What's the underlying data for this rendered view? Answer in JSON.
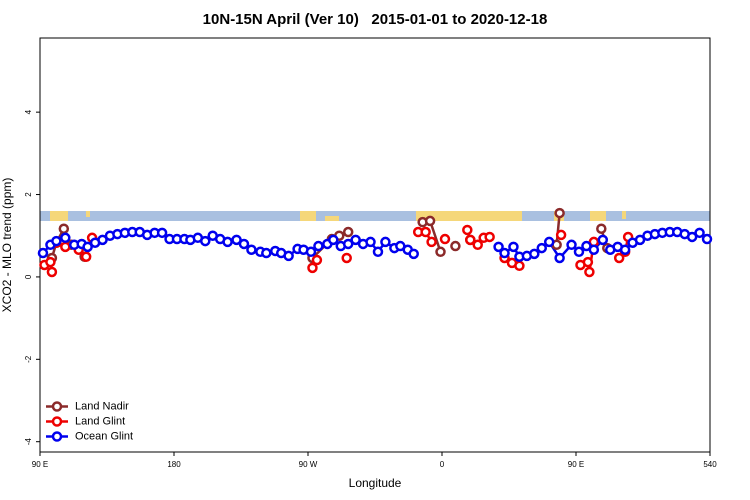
{
  "chart_data": {
    "type": "line",
    "title": "10N-15N April (Ver 10)   2015-01-01 to 2020-12-18",
    "x_label": "Longitude",
    "y_label": "XCO2 - MLO trend (ppm)",
    "xlim": [
      90,
      540
    ],
    "ylim": [
      -4.25,
      5.8
    ],
    "xticks": [
      {
        "value": 90,
        "label": "90 E"
      },
      180,
      {
        "value": 270,
        "label": "90 W"
      },
      {
        "value": 360,
        "label": "0"
      },
      {
        "value": 450,
        "label": "90 E"
      },
      540
    ],
    "yticks": [
      -4,
      -2,
      0,
      2,
      4
    ],
    "legend": "bottomleft",
    "series": [
      {
        "name": "Land Nadir",
        "color": "#8b2a2a",
        "x": [
          98,
          101,
          106,
          111,
          120,
          null,
          273,
          286,
          291,
          297,
          null,
          347,
          352,
          359,
          null,
          369,
          null,
          379,
          null,
          437,
          439,
          null,
          467,
          471
        ],
        "values": [
          0.46,
          0.83,
          1.17,
          0.78,
          0.49,
          null,
          0.46,
          0.92,
          1.0,
          1.09,
          null,
          1.33,
          1.36,
          0.61,
          null,
          0.75,
          null,
          0.9,
          null,
          0.78,
          1.55,
          null,
          1.17,
          0.7
        ]
      },
      {
        "name": "Land Glint",
        "color": "#ee0000",
        "x": [
          93,
          97,
          98,
          null,
          101,
          107,
          null,
          116,
          121,
          125,
          null,
          273,
          276,
          null,
          296,
          null,
          344,
          349,
          353,
          null,
          362,
          null,
          377,
          379,
          384,
          388,
          392,
          null,
          402,
          407,
          412,
          null,
          440,
          null,
          453,
          458,
          459,
          462,
          null,
          479,
          483,
          485
        ],
        "values": [
          0.29,
          0.36,
          0.12,
          null,
          0.83,
          0.73,
          null,
          0.66,
          0.49,
          0.95,
          null,
          0.22,
          0.41,
          null,
          0.46,
          null,
          1.09,
          1.09,
          0.85,
          null,
          0.92,
          null,
          1.14,
          0.9,
          0.78,
          0.95,
          0.97,
          null,
          0.46,
          0.34,
          0.27,
          null,
          1.02,
          null,
          0.29,
          0.36,
          0.12,
          0.85,
          null,
          0.46,
          0.61,
          0.97
        ]
      },
      {
        "name": "Ocean Glint",
        "color": "#0000ee",
        "x": [
          92,
          97,
          101,
          107,
          113,
          118,
          122,
          127,
          132,
          137,
          142,
          147,
          152,
          157,
          162,
          167,
          172,
          177,
          182,
          187,
          191,
          196,
          201,
          206,
          211,
          216,
          222,
          227,
          232,
          238,
          242,
          248,
          252,
          257,
          263,
          267,
          272,
          277,
          283,
          287,
          292,
          297,
          302,
          307,
          312,
          317,
          322,
          328,
          332,
          337,
          341,
          null,
          398,
          402,
          408,
          412,
          417,
          422,
          427,
          432,
          439,
          447,
          452,
          457,
          462,
          468,
          473,
          478,
          483,
          488,
          493,
          498,
          503,
          508,
          513,
          518,
          523,
          528,
          533,
          538
        ],
        "values": [
          0.58,
          0.78,
          0.87,
          0.95,
          0.78,
          0.8,
          0.73,
          0.83,
          0.9,
          1.0,
          1.04,
          1.07,
          1.09,
          1.09,
          1.02,
          1.07,
          1.07,
          0.92,
          0.92,
          0.92,
          0.9,
          0.95,
          0.87,
          1.0,
          0.92,
          0.85,
          0.9,
          0.8,
          0.66,
          0.61,
          0.58,
          0.63,
          0.58,
          0.51,
          0.68,
          0.66,
          0.61,
          0.75,
          0.8,
          0.9,
          0.75,
          0.8,
          0.9,
          0.8,
          0.85,
          0.61,
          0.85,
          0.7,
          0.75,
          0.66,
          0.56,
          null,
          0.73,
          0.58,
          0.73,
          0.49,
          0.51,
          0.56,
          0.7,
          0.85,
          0.46,
          0.78,
          0.61,
          0.75,
          0.66,
          0.9,
          0.66,
          0.73,
          0.66,
          0.83,
          0.9,
          1.0,
          1.04,
          1.07,
          1.09,
          1.09,
          1.04,
          0.97,
          1.07,
          0.92
        ]
      }
    ]
  }
}
